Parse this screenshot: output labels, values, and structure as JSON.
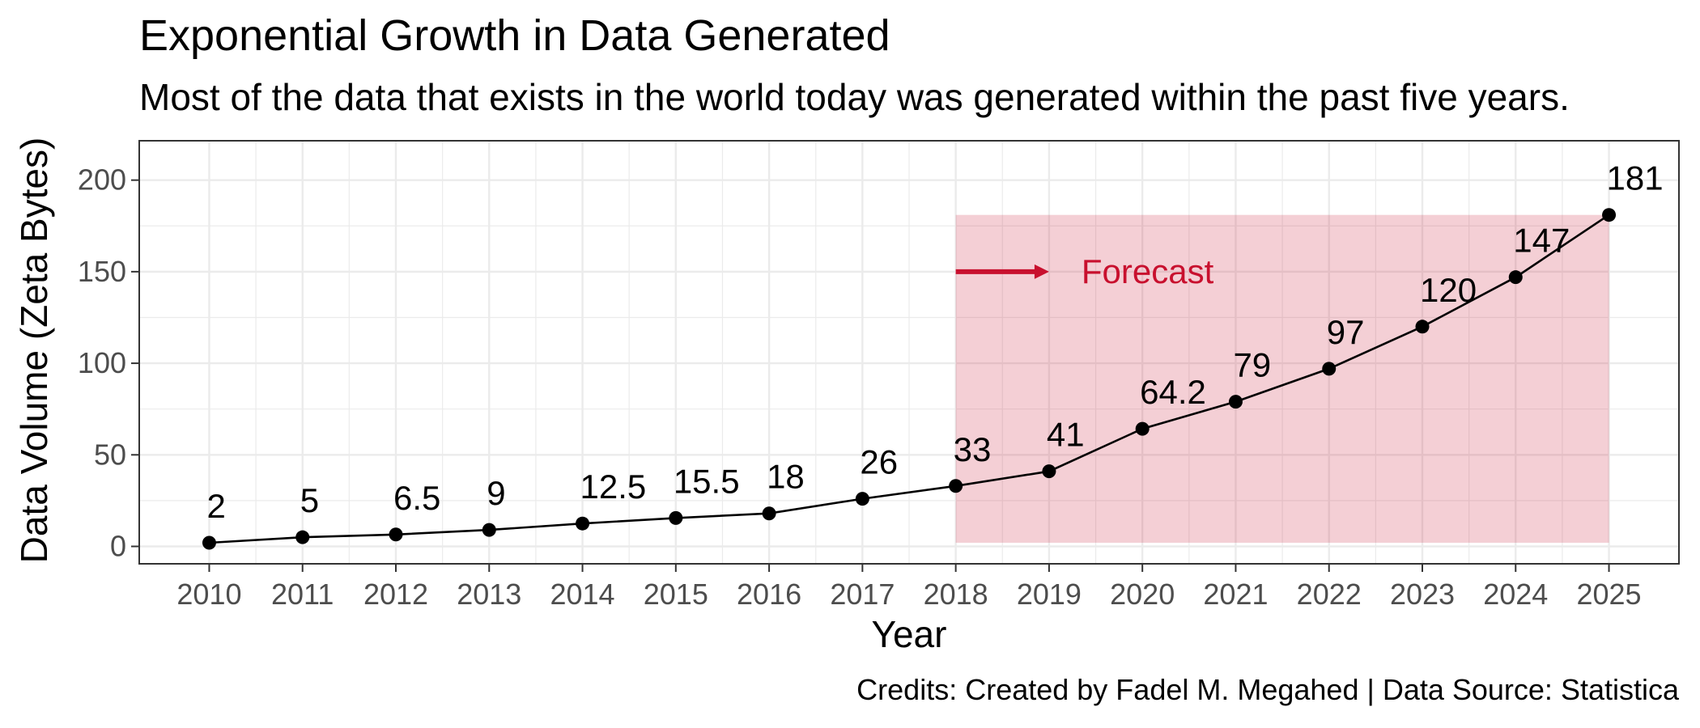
{
  "chart_data": {
    "type": "line",
    "title": "Exponential Growth in Data Generated",
    "subtitle": "Most of the data that exists in the world today was generated within the past five years.",
    "xlabel": "Year",
    "ylabel": "Data Volume (Zeta Bytes)",
    "caption": "Credits: Created by Fadel M. Megahed | Data Source: Statistica",
    "x": [
      2010,
      2011,
      2012,
      2013,
      2014,
      2015,
      2016,
      2017,
      2018,
      2019,
      2020,
      2021,
      2022,
      2023,
      2024,
      2025
    ],
    "values": [
      2,
      5,
      6.5,
      9,
      12.5,
      15.5,
      18,
      26,
      33,
      41,
      64.2,
      79,
      97,
      120,
      147,
      181
    ],
    "data_labels": [
      "2",
      "5",
      "6.5",
      "9",
      "12.5",
      "15.5",
      "18",
      "26",
      "33",
      "41",
      "64.2",
      "79",
      "97",
      "120",
      "147",
      "181"
    ],
    "xlim": [
      2009.25,
      2025.75
    ],
    "ylim": [
      -9.5,
      221.5
    ],
    "y_ticks": [
      0,
      50,
      100,
      150,
      200
    ],
    "x_ticks": [
      2010,
      2011,
      2012,
      2013,
      2014,
      2015,
      2016,
      2017,
      2018,
      2019,
      2020,
      2021,
      2022,
      2023,
      2024,
      2025
    ],
    "grid": true,
    "forecast_region": {
      "x_start": 2018,
      "x_end": 2025,
      "y_start": 2,
      "y_end": 181
    },
    "annotation": {
      "text": "Forecast",
      "arrow_from_x": 2018,
      "arrow_to_x": 2019,
      "y": 150
    },
    "colors": {
      "line": "#000000",
      "point": "#000000",
      "forecast_fill": "#C8102E",
      "annotation": "#C8102E",
      "grid": "#EBEBEB"
    }
  }
}
